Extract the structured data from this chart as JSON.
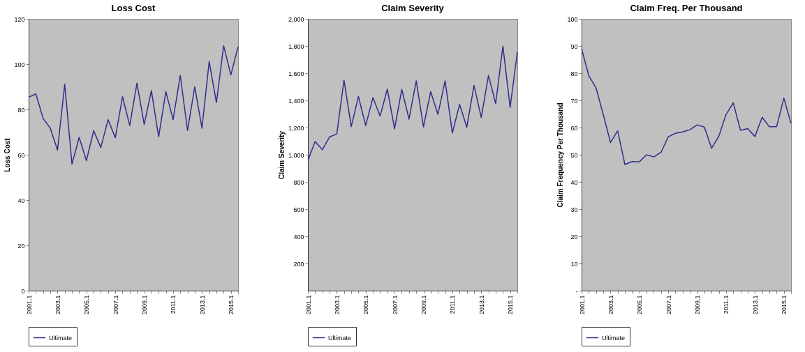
{
  "chart_data": [
    {
      "type": "line",
      "title": "Loss Cost",
      "ylabel": "Loss Cost",
      "categories": [
        "2001.1",
        null,
        null,
        null,
        "2003.1",
        null,
        null,
        null,
        "2005.1",
        null,
        null,
        null,
        "2007.1",
        null,
        null,
        null,
        "2009.1",
        null,
        null,
        null,
        "2011.1",
        null,
        null,
        null,
        "2013.1",
        null,
        null,
        null,
        "2015.1",
        null
      ],
      "series": [
        {
          "name": "Ultimate",
          "color": "#2e2e8c",
          "values": [
            85.4,
            86.9,
            76.1,
            71.7,
            62.1,
            91.1,
            55.9,
            67.7,
            57.4,
            70.6,
            63.2,
            75.5,
            67.5,
            85.6,
            72.9,
            91.6,
            73.4,
            88.3,
            67.9,
            87.9,
            75.5,
            95,
            70.7,
            90,
            71.7,
            101.2,
            83,
            108.1,
            95.2,
            107.7
          ]
        }
      ],
      "ylim": [
        0,
        120
      ],
      "yticks": [
        0,
        20,
        40,
        60,
        80,
        100,
        120
      ],
      "grid": false,
      "legend": "bottom",
      "marker": "none",
      "line_style": "solid"
    },
    {
      "type": "line",
      "title": "Claim Severity",
      "ylabel": "Claim Severity",
      "categories": [
        "2001.1",
        null,
        null,
        null,
        "2003.1",
        null,
        null,
        null,
        "2005.1",
        null,
        null,
        null,
        "2007.1",
        null,
        null,
        null,
        "2009.1",
        null,
        null,
        null,
        "2011.1",
        null,
        null,
        null,
        "2013.1",
        null,
        null,
        null,
        "2015.1",
        null
      ],
      "series": [
        {
          "name": "Ultimate",
          "color": "#2e2e8c",
          "values": [
            957,
            1098,
            1037,
            1131,
            1153,
            1549,
            1207,
            1428,
            1214,
            1420,
            1285,
            1483,
            1191,
            1481,
            1262,
            1544,
            1205,
            1464,
            1297,
            1544,
            1160,
            1370,
            1203,
            1510,
            1274,
            1583,
            1377,
            1799,
            1348,
            1755
          ]
        }
      ],
      "ylim": [
        0,
        2000
      ],
      "yticks": [
        {
          "value": 200,
          "label": "200"
        },
        {
          "value": 400,
          "label": "400"
        },
        {
          "value": 600,
          "label": "600"
        },
        {
          "value": 800,
          "label": "800"
        },
        {
          "value": 1000,
          "label": "1,000"
        },
        {
          "value": 1200,
          "label": "1,200"
        },
        {
          "value": 1400,
          "label": "1,400"
        },
        {
          "value": 1600,
          "label": "1,600"
        },
        {
          "value": 1800,
          "label": "1,800"
        },
        {
          "value": 2000,
          "label": "2,000"
        }
      ],
      "grid": false,
      "legend": "bottom",
      "marker": "none",
      "line_style": "solid"
    },
    {
      "type": "line",
      "title": "Claim Freq. Per Thousand",
      "ylabel": "Claim Frequency Per Thousand",
      "categories": [
        "2001.1",
        null,
        null,
        null,
        "2003.1",
        null,
        null,
        null,
        "2005.1",
        null,
        null,
        null,
        "2007.1",
        null,
        null,
        null,
        "2009.1",
        null,
        null,
        null,
        "2011.1",
        null,
        null,
        null,
        "2013.1",
        null,
        null,
        null,
        "2015.1",
        null
      ],
      "series": [
        {
          "name": "Ultimate",
          "color": "#2e2e8c",
          "values": [
            89.0,
            79.1,
            74.6,
            64.8,
            54.5,
            58.8,
            46.4,
            47.5,
            47.4,
            50.0,
            49.2,
            50.9,
            56.6,
            57.9,
            58.4,
            59.2,
            61.0,
            60.2,
            52.4,
            56.8,
            64.8,
            69.1,
            59.0,
            59.6,
            56.7,
            63.8,
            60.3,
            60.3,
            70.8,
            61.5
          ]
        }
      ],
      "ylim": [
        0,
        100
      ],
      "yticks": [
        {
          "value": 0,
          "label": "-"
        },
        10,
        20,
        30,
        40,
        50,
        60,
        70,
        80,
        90,
        100
      ],
      "grid": false,
      "legend": "bottom",
      "marker": "none",
      "line_style": "solid"
    }
  ]
}
